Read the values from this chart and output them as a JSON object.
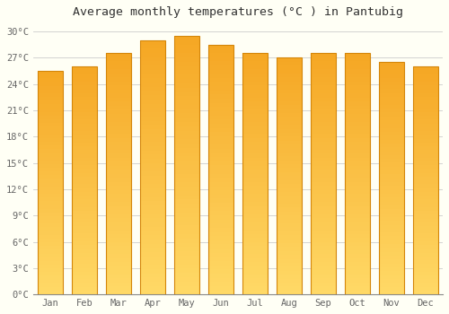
{
  "title": "Average monthly temperatures (°C ) in Pantubig",
  "months": [
    "Jan",
    "Feb",
    "Mar",
    "Apr",
    "May",
    "Jun",
    "Jul",
    "Aug",
    "Sep",
    "Oct",
    "Nov",
    "Dec"
  ],
  "values": [
    25.5,
    26.0,
    27.5,
    29.0,
    29.5,
    28.5,
    27.5,
    27.0,
    27.5,
    27.5,
    26.5,
    26.0
  ],
  "bar_color_top": "#F5A623",
  "bar_color_bottom": "#FFD966",
  "bar_edge_color": "#D4860A",
  "background_color": "#FFFFF5",
  "grid_color": "#cccccc",
  "ylim": [
    0,
    31
  ],
  "yticks": [
    0,
    3,
    6,
    9,
    12,
    15,
    18,
    21,
    24,
    27,
    30
  ],
  "title_fontsize": 9.5,
  "tick_fontsize": 7.5,
  "bar_width": 0.72
}
